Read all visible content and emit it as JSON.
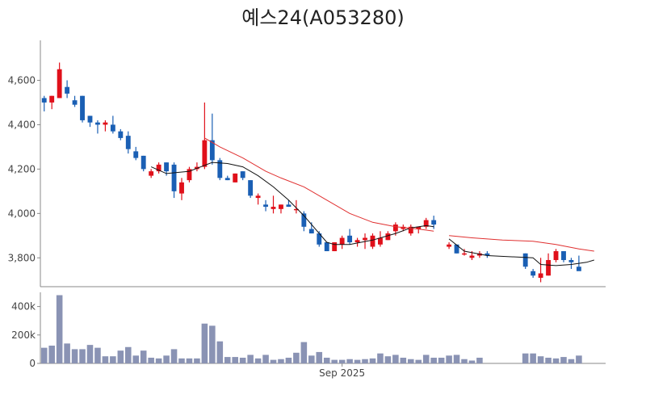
{
  "chart_data": [
    {
      "type": "candlestick",
      "title": "예스24(A053280)",
      "ylim": [
        3670,
        4780
      ],
      "y_ticks": [
        3800,
        4000,
        4200,
        4400,
        4600
      ],
      "y_tick_labels": [
        "3,800",
        "4,000",
        "4,200",
        "4,400",
        "4,600"
      ],
      "colors": {
        "up": "#e0101a",
        "down": "#1a5fb4",
        "ma_short": "#111111",
        "ma_long": "#e03030"
      },
      "candles": [
        [
          4520,
          4530,
          4460,
          4500
        ],
        [
          4500,
          4530,
          4470,
          4530
        ],
        [
          4520,
          4680,
          4520,
          4650
        ],
        [
          4570,
          4600,
          4520,
          4540
        ],
        [
          4510,
          4530,
          4480,
          4490
        ],
        [
          4530,
          4530,
          4410,
          4420
        ],
        [
          4440,
          4440,
          4390,
          4410
        ],
        [
          4410,
          4420,
          4360,
          4400
        ],
        [
          4400,
          4420,
          4370,
          4410
        ],
        [
          4400,
          4440,
          4360,
          4370
        ],
        [
          4370,
          4380,
          4330,
          4340
        ],
        [
          4350,
          4370,
          4270,
          4290
        ],
        [
          4280,
          4300,
          4240,
          4250
        ],
        [
          4260,
          4260,
          4190,
          4200
        ],
        [
          4170,
          4200,
          4160,
          4190
        ],
        [
          4190,
          4230,
          4180,
          4220
        ],
        [
          4230,
          4230,
          4170,
          4190
        ],
        [
          4220,
          4230,
          4070,
          4100
        ],
        [
          4090,
          4160,
          4060,
          4140
        ],
        [
          4150,
          4210,
          4140,
          4200
        ],
        [
          4200,
          4230,
          4190,
          4210
        ],
        [
          4210,
          4500,
          4200,
          4330
        ],
        [
          4330,
          4450,
          4220,
          4240
        ],
        [
          4240,
          4250,
          4150,
          4160
        ],
        [
          4160,
          4170,
          4150,
          4150
        ],
        [
          4140,
          4180,
          4140,
          4180
        ],
        [
          4190,
          4190,
          4150,
          4160
        ],
        [
          4150,
          4150,
          4070,
          4080
        ],
        [
          4070,
          4090,
          4040,
          4080
        ],
        [
          4040,
          4060,
          4010,
          4030
        ],
        [
          4020,
          4080,
          4000,
          4030
        ],
        [
          4020,
          4040,
          4000,
          4040
        ],
        [
          4040,
          4060,
          4030,
          4030
        ],
        [
          4020,
          4060,
          4000,
          4020
        ],
        [
          4000,
          4010,
          3920,
          3940
        ],
        [
          3930,
          3960,
          3910,
          3910
        ],
        [
          3910,
          3920,
          3850,
          3860
        ],
        [
          3870,
          3870,
          3830,
          3830
        ],
        [
          3830,
          3870,
          3830,
          3870
        ],
        [
          3860,
          3900,
          3840,
          3890
        ],
        [
          3900,
          3930,
          3860,
          3870
        ],
        [
          3870,
          3890,
          3850,
          3880
        ],
        [
          3880,
          3910,
          3840,
          3890
        ],
        [
          3850,
          3910,
          3840,
          3900
        ],
        [
          3860,
          3920,
          3850,
          3890
        ],
        [
          3880,
          3920,
          3880,
          3910
        ],
        [
          3920,
          3960,
          3900,
          3950
        ],
        [
          3930,
          3950,
          3920,
          3940
        ],
        [
          3910,
          3950,
          3900,
          3940
        ],
        [
          3930,
          3940,
          3910,
          3940
        ],
        [
          3940,
          3980,
          3930,
          3970
        ],
        [
          3970,
          3990,
          3930,
          3950
        ],
        null,
        [
          3850,
          3870,
          3840,
          3860
        ],
        [
          3860,
          3860,
          3820,
          3820
        ],
        [
          3820,
          3840,
          3810,
          3820
        ],
        [
          3800,
          3830,
          3790,
          3810
        ],
        [
          3810,
          3830,
          3800,
          3820
        ],
        [
          3820,
          3830,
          3800,
          3810
        ],
        null,
        null,
        null,
        null,
        [
          3820,
          3820,
          3750,
          3760
        ],
        [
          3740,
          3750,
          3710,
          3720
        ],
        [
          3710,
          3800,
          3690,
          3730
        ],
        [
          3720,
          3820,
          3720,
          3790
        ],
        [
          3790,
          3840,
          3780,
          3830
        ],
        [
          3830,
          3830,
          3780,
          3790
        ],
        [
          3790,
          3800,
          3750,
          3780
        ],
        [
          3760,
          3810,
          3750,
          3740
        ]
      ],
      "ma_short": [
        [
          14,
          4210
        ],
        [
          16,
          4180
        ],
        [
          19,
          4190
        ],
        [
          22,
          4230
        ],
        [
          24,
          4225
        ],
        [
          26,
          4210
        ],
        [
          28,
          4170
        ],
        [
          30,
          4120
        ],
        [
          32,
          4060
        ],
        [
          34,
          3990
        ],
        [
          36,
          3910
        ],
        [
          37,
          3870
        ],
        [
          38,
          3860
        ],
        [
          40,
          3860
        ],
        [
          43,
          3880
        ],
        [
          46,
          3910
        ],
        [
          48,
          3935
        ],
        [
          50,
          3945
        ],
        [
          51,
          3940
        ],
        [
          53,
          3885
        ],
        [
          55,
          3830
        ],
        [
          58,
          3810
        ],
        [
          64,
          3800
        ],
        [
          65,
          3770
        ],
        [
          67,
          3765
        ],
        [
          69,
          3770
        ],
        [
          71,
          3780
        ],
        [
          72,
          3790
        ]
      ],
      "ma_long": [
        [
          21,
          4340
        ],
        [
          23,
          4300
        ],
        [
          26,
          4250
        ],
        [
          29,
          4190
        ],
        [
          31,
          4160
        ],
        [
          34,
          4120
        ],
        [
          37,
          4060
        ],
        [
          40,
          4000
        ],
        [
          43,
          3960
        ],
        [
          46,
          3940
        ],
        [
          49,
          3930
        ],
        [
          51,
          3920
        ],
        [
          53,
          3900
        ],
        [
          56,
          3890
        ],
        [
          60,
          3880
        ],
        [
          64,
          3875
        ],
        [
          67,
          3860
        ],
        [
          70,
          3840
        ],
        [
          72,
          3830
        ]
      ],
      "x_count": 74
    },
    {
      "type": "bar",
      "ylim": [
        0,
        500000
      ],
      "y_ticks": [
        0,
        200000,
        400000
      ],
      "y_tick_labels": [
        "0",
        "200k",
        "400k"
      ],
      "x_ticks": [
        {
          "index": 39,
          "label": "Sep 2025"
        }
      ],
      "color": "#8a93b4",
      "values": [
        110000,
        125000,
        480000,
        140000,
        100000,
        100000,
        130000,
        110000,
        50000,
        50000,
        90000,
        115000,
        55000,
        90000,
        40000,
        35000,
        55000,
        100000,
        35000,
        35000,
        35000,
        280000,
        265000,
        155000,
        45000,
        45000,
        40000,
        60000,
        35000,
        60000,
        25000,
        30000,
        40000,
        75000,
        150000,
        55000,
        80000,
        40000,
        25000,
        25000,
        30000,
        25000,
        30000,
        35000,
        70000,
        50000,
        60000,
        40000,
        30000,
        25000,
        60000,
        40000,
        40000,
        55000,
        60000,
        30000,
        20000,
        40000,
        0,
        0,
        0,
        0,
        0,
        70000,
        70000,
        50000,
        40000,
        35000,
        45000,
        30000,
        55000,
        0,
        0,
        0
      ]
    }
  ]
}
